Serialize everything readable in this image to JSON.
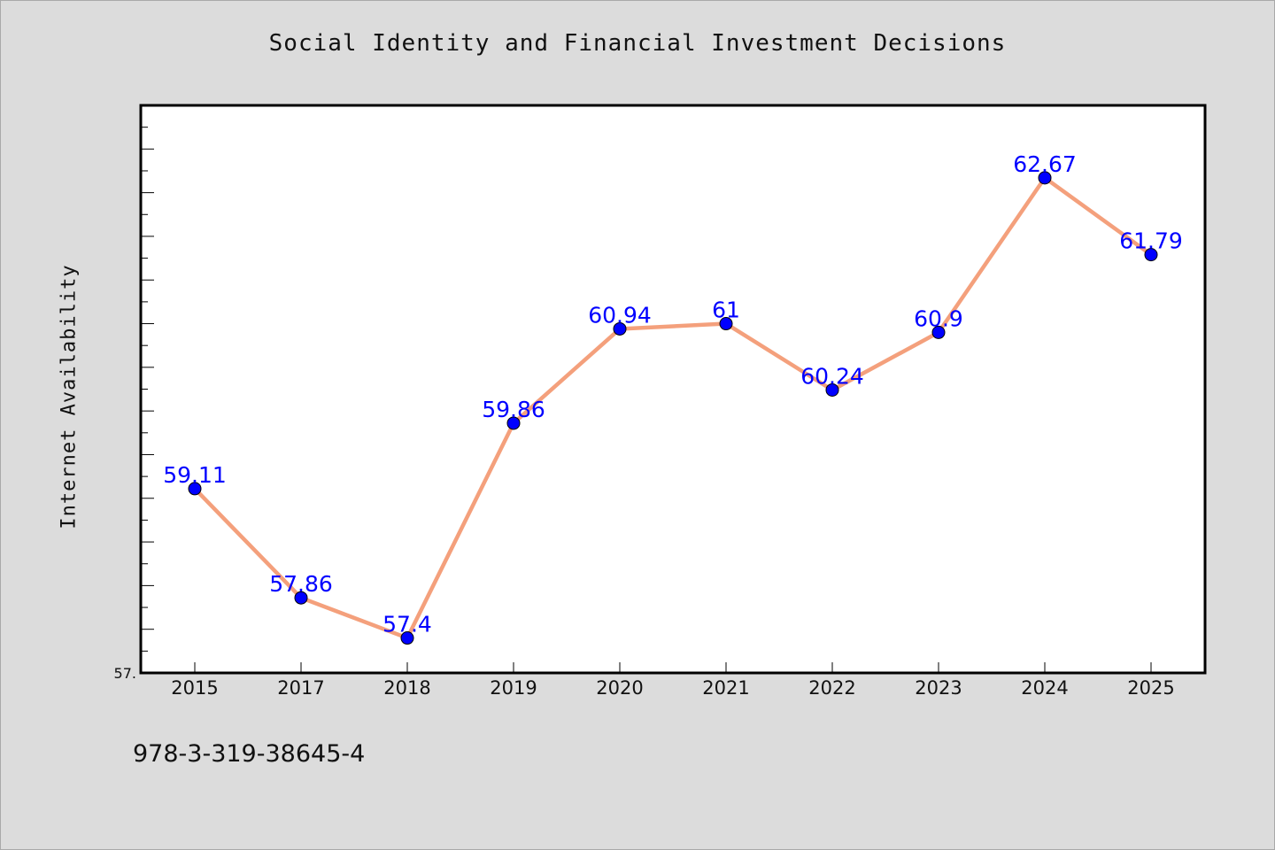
{
  "chart_data": {
    "type": "line",
    "title": "Social Identity and Financial Investment Decisions",
    "xlabel": "",
    "ylabel": "Internet Availability",
    "categories": [
      "2015",
      "2017",
      "2018",
      "2019",
      "2020",
      "2021",
      "2022",
      "2023",
      "2024",
      "2025"
    ],
    "values": [
      59.11,
      57.86,
      57.4,
      59.86,
      60.94,
      61,
      60.24,
      60.9,
      62.67,
      61.79
    ],
    "data_labels": [
      "59.11",
      "57.86",
      "57.4",
      "59.86",
      "60.94",
      "61",
      "60.24",
      "60.9",
      "62.67",
      "61.79"
    ],
    "y_tick_label": "57.",
    "ylim": [
      57.0,
      63.5
    ],
    "grid": false,
    "line_color": "#f4a07c",
    "marker_color": "#0000ff",
    "label_color": "#0000ff"
  },
  "footer": {
    "code": "978-3-319-38645-4"
  }
}
